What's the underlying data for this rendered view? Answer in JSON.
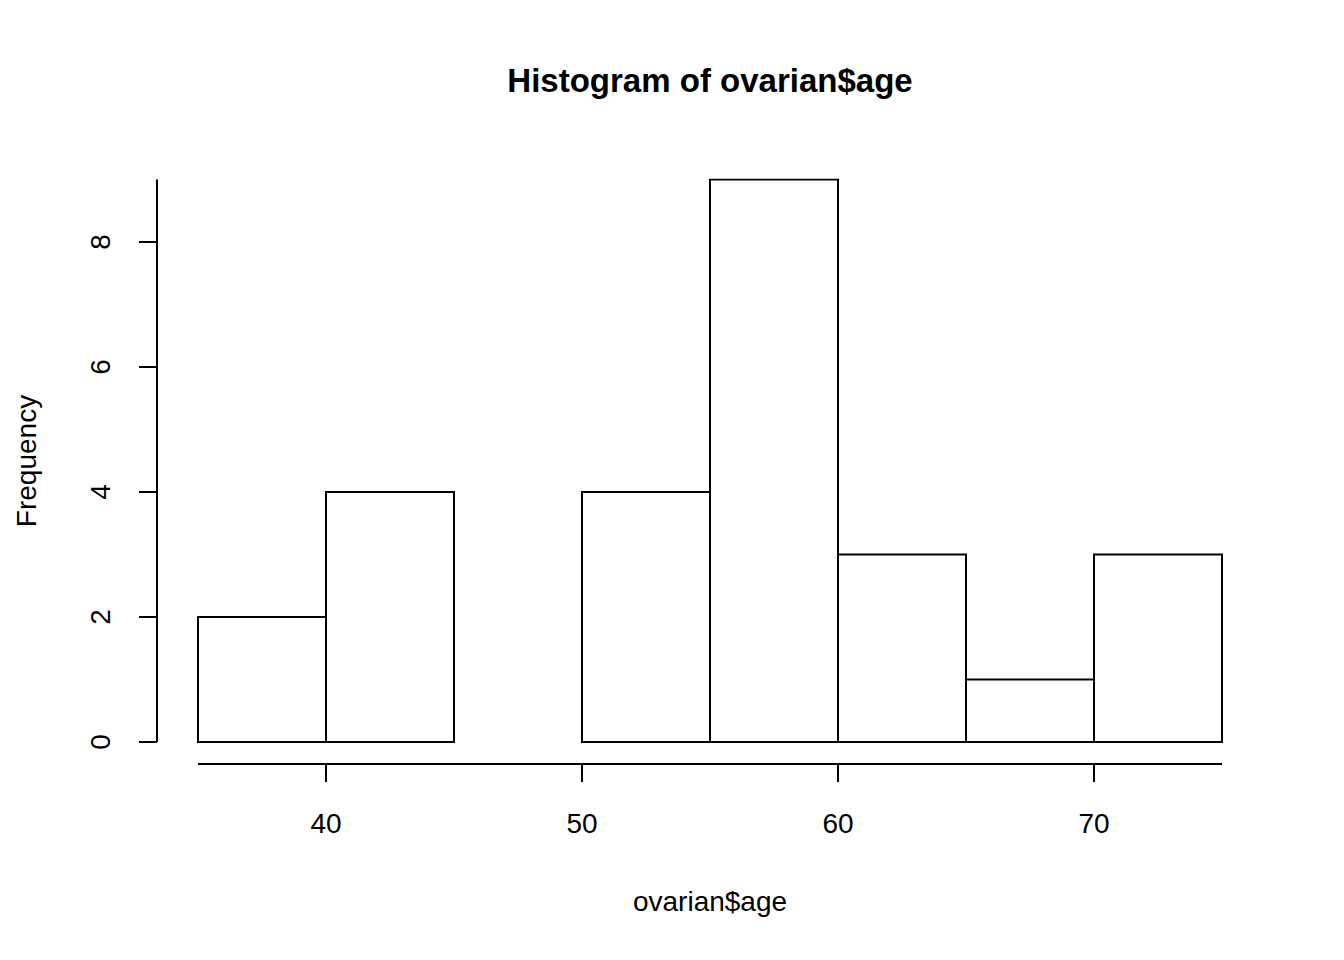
{
  "chart_data": {
    "type": "histogram",
    "title": "Histogram of ovarian$age",
    "x_label": "ovarian$age",
    "y_label": "Frequency",
    "bins": [
      35,
      40,
      45,
      50,
      55,
      60,
      65,
      70,
      75
    ],
    "values": [
      2,
      4,
      0,
      4,
      9,
      3,
      1,
      3
    ],
    "color": "#ffffff",
    "xlim": [
      35,
      75
    ],
    "ylim": [
      0,
      9
    ],
    "xticks": [
      40,
      50,
      60,
      70
    ],
    "yticks": [
      0,
      2,
      4,
      6,
      8
    ],
    "grid": false
  }
}
